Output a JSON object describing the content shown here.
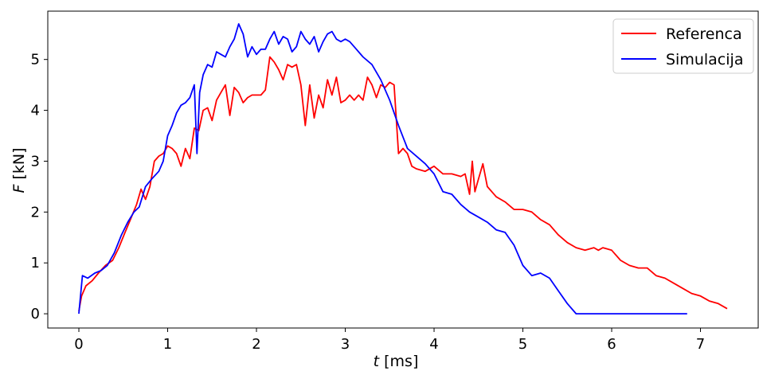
{
  "chart_data": {
    "type": "line",
    "xlabel_var": "t",
    "xlabel_unit": "[ms]",
    "ylabel_var": "F",
    "ylabel_unit": "[kN]",
    "xlim": [
      -0.35,
      7.65
    ],
    "ylim": [
      -0.28,
      5.95
    ],
    "xticks": [
      0,
      1,
      2,
      3,
      4,
      5,
      6,
      7
    ],
    "yticks": [
      0,
      1,
      2,
      3,
      4,
      5
    ],
    "grid": false,
    "legend_position": "top-right",
    "series": [
      {
        "name": "Referenca",
        "color": "#ff0000",
        "x": [
          0,
          0.03,
          0.08,
          0.15,
          0.22,
          0.3,
          0.38,
          0.45,
          0.52,
          0.58,
          0.65,
          0.7,
          0.75,
          0.8,
          0.85,
          0.9,
          0.95,
          1.0,
          1.05,
          1.1,
          1.15,
          1.2,
          1.25,
          1.3,
          1.35,
          1.4,
          1.45,
          1.5,
          1.55,
          1.6,
          1.65,
          1.7,
          1.75,
          1.8,
          1.85,
          1.9,
          1.95,
          2.0,
          2.05,
          2.1,
          2.15,
          2.2,
          2.25,
          2.3,
          2.35,
          2.4,
          2.45,
          2.5,
          2.55,
          2.6,
          2.65,
          2.7,
          2.75,
          2.8,
          2.85,
          2.9,
          2.95,
          3.0,
          3.05,
          3.1,
          3.15,
          3.2,
          3.25,
          3.3,
          3.35,
          3.4,
          3.45,
          3.5,
          3.55,
          3.6,
          3.65,
          3.7,
          3.75,
          3.8,
          3.9,
          4.0,
          4.1,
          4.2,
          4.3,
          4.35,
          4.4,
          4.43,
          4.46,
          4.5,
          4.55,
          4.6,
          4.7,
          4.8,
          4.9,
          5.0,
          5.1,
          5.2,
          5.3,
          5.4,
          5.5,
          5.6,
          5.7,
          5.8,
          5.85,
          5.9,
          6.0,
          6.1,
          6.2,
          6.3,
          6.4,
          6.5,
          6.6,
          6.7,
          6.8,
          6.9,
          7.0,
          7.1,
          7.2,
          7.3
        ],
        "values": [
          0.05,
          0.35,
          0.55,
          0.65,
          0.8,
          0.95,
          1.05,
          1.3,
          1.6,
          1.85,
          2.15,
          2.45,
          2.25,
          2.5,
          3.0,
          3.1,
          3.15,
          3.3,
          3.25,
          3.15,
          2.9,
          3.25,
          3.05,
          3.65,
          3.6,
          4.0,
          4.05,
          3.8,
          4.2,
          4.35,
          4.5,
          3.9,
          4.45,
          4.35,
          4.15,
          4.25,
          4.3,
          4.3,
          4.3,
          4.4,
          5.05,
          4.95,
          4.8,
          4.6,
          4.9,
          4.85,
          4.9,
          4.5,
          3.7,
          4.5,
          3.85,
          4.3,
          4.05,
          4.6,
          4.3,
          4.65,
          4.15,
          4.2,
          4.3,
          4.2,
          4.3,
          4.2,
          4.65,
          4.5,
          4.25,
          4.5,
          4.45,
          4.55,
          4.5,
          3.15,
          3.25,
          3.15,
          2.9,
          2.85,
          2.8,
          2.9,
          2.75,
          2.75,
          2.7,
          2.75,
          2.35,
          3.0,
          2.4,
          2.65,
          2.95,
          2.5,
          2.3,
          2.2,
          2.05,
          2.05,
          2.0,
          1.85,
          1.75,
          1.55,
          1.4,
          1.3,
          1.25,
          1.3,
          1.25,
          1.3,
          1.25,
          1.05,
          0.95,
          0.9,
          0.9,
          0.75,
          0.7,
          0.6,
          0.5,
          0.4,
          0.35,
          0.25,
          0.2,
          0.1
        ]
      },
      {
        "name": "Simulacija",
        "color": "#0000ff",
        "x": [
          0,
          0.04,
          0.1,
          0.18,
          0.25,
          0.32,
          0.4,
          0.48,
          0.55,
          0.62,
          0.68,
          0.75,
          0.82,
          0.9,
          0.95,
          1.0,
          1.05,
          1.1,
          1.15,
          1.2,
          1.25,
          1.3,
          1.33,
          1.36,
          1.4,
          1.45,
          1.5,
          1.55,
          1.6,
          1.65,
          1.7,
          1.75,
          1.8,
          1.85,
          1.9,
          1.95,
          2.0,
          2.05,
          2.1,
          2.15,
          2.2,
          2.25,
          2.3,
          2.35,
          2.4,
          2.45,
          2.5,
          2.55,
          2.6,
          2.65,
          2.7,
          2.75,
          2.8,
          2.85,
          2.9,
          2.95,
          3.0,
          3.05,
          3.1,
          3.2,
          3.3,
          3.4,
          3.5,
          3.6,
          3.7,
          3.8,
          3.9,
          4.0,
          4.1,
          4.2,
          4.3,
          4.4,
          4.5,
          4.6,
          4.7,
          4.8,
          4.9,
          5.0,
          5.1,
          5.2,
          5.3,
          5.4,
          5.5,
          5.6,
          5.67,
          5.8,
          6.0,
          6.2,
          6.4,
          6.6,
          6.85
        ],
        "values": [
          0.0,
          0.75,
          0.7,
          0.8,
          0.85,
          0.95,
          1.2,
          1.55,
          1.8,
          2.0,
          2.1,
          2.5,
          2.65,
          2.8,
          3.0,
          3.5,
          3.7,
          3.95,
          4.1,
          4.15,
          4.25,
          4.5,
          3.15,
          4.35,
          4.7,
          4.9,
          4.85,
          5.15,
          5.1,
          5.05,
          5.25,
          5.4,
          5.7,
          5.5,
          5.05,
          5.25,
          5.1,
          5.2,
          5.2,
          5.4,
          5.55,
          5.3,
          5.45,
          5.4,
          5.15,
          5.25,
          5.55,
          5.4,
          5.3,
          5.45,
          5.15,
          5.35,
          5.5,
          5.55,
          5.4,
          5.35,
          5.4,
          5.35,
          5.25,
          5.05,
          4.9,
          4.6,
          4.2,
          3.7,
          3.25,
          3.1,
          2.95,
          2.75,
          2.4,
          2.35,
          2.15,
          2.0,
          1.9,
          1.8,
          1.65,
          1.6,
          1.35,
          0.95,
          0.75,
          0.8,
          0.7,
          0.45,
          0.2,
          0.0,
          0.0,
          0.0,
          0.0,
          0.0,
          0.0,
          0.0,
          0.0
        ]
      }
    ]
  }
}
